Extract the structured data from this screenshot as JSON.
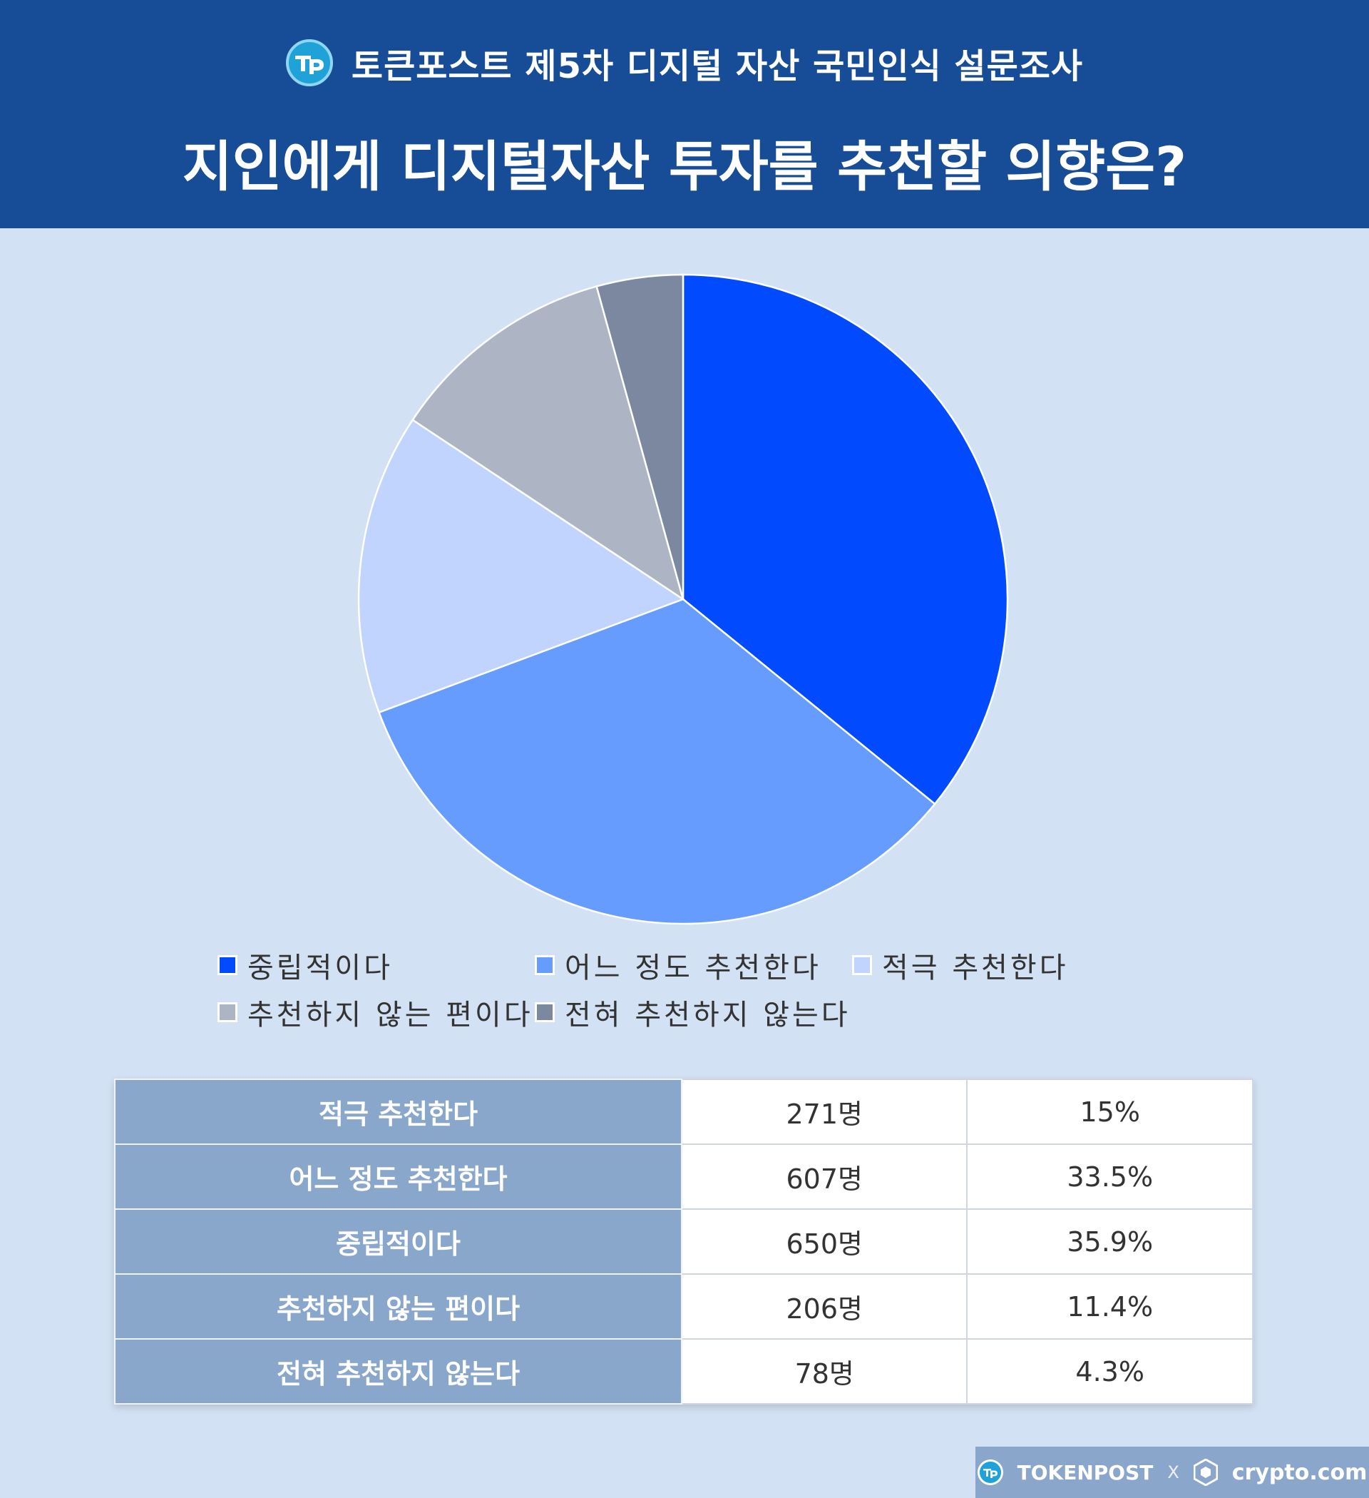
{
  "header": {
    "survey_name": "토큰포스트 제5차 디지털 자산 국민인식 설문조사",
    "title": "지인에게 디지털자산 투자를 추천할 의향은?"
  },
  "chart_data": {
    "type": "pie",
    "title": "지인에게 디지털자산 투자를 추천할 의향은?",
    "slices": [
      {
        "label": "중립적이다",
        "value": 35.9,
        "color": "#014afe"
      },
      {
        "label": "어느 정도 추천한다",
        "value": 33.5,
        "color": "#659cfe"
      },
      {
        "label": "적극 추천한다",
        "value": 15,
        "color": "#c1d4fd"
      },
      {
        "label": "추천하지 않는 편이다",
        "value": 11.4,
        "color": "#adb5c4"
      },
      {
        "label": "전혀 추천하지 않는다",
        "value": 4.3,
        "color": "#7b889f"
      }
    ],
    "start_angle_deg": 0,
    "direction": "clockwise",
    "legend_position": "bottom"
  },
  "legend": [
    {
      "label": "중립적이다",
      "color": "#014afe"
    },
    {
      "label": "어느 정도 추천한다",
      "color": "#659cfe"
    },
    {
      "label": "적극 추천한다",
      "color": "#c1d4fd"
    },
    {
      "label": "추천하지 않는 편이다",
      "color": "#adb5c4"
    },
    {
      "label": "전혀 추천하지 않는다",
      "color": "#7b889f"
    }
  ],
  "table": {
    "rows": [
      {
        "label": "적극 추천한다",
        "count": "271명",
        "percent": "15%"
      },
      {
        "label": "어느 정도 추천한다",
        "count": "607명",
        "percent": "33.5%"
      },
      {
        "label": "중립적이다",
        "count": "650명",
        "percent": "35.9%"
      },
      {
        "label": "추천하지 않는 편이다",
        "count": "206명",
        "percent": "11.4%"
      },
      {
        "label": "전혀 추천하지 않는다",
        "count": "78명",
        "percent": "4.3%"
      }
    ]
  },
  "footer": {
    "brand_left": "TOKENPOST",
    "separator": "X",
    "brand_right": "crypto.com"
  },
  "logo_icon": "tokenpost-logo-icon",
  "crypto_icon": "crypto-com-logo-icon"
}
